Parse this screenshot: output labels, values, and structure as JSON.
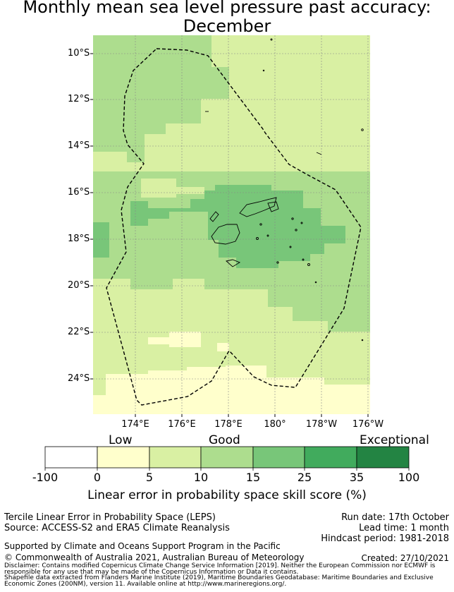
{
  "title_line1": "Monthly mean sea level pressure past accuracy:",
  "title_line2": "December",
  "map": {
    "lat_labels": [
      "10°S",
      "12°S",
      "14°S",
      "16°S",
      "18°S",
      "20°S",
      "22°S",
      "24°S"
    ],
    "lon_labels": [
      "174°E",
      "176°E",
      "178°E",
      "180°",
      "178°W",
      "176°W"
    ],
    "region": "Fiji exclusive economic zone (dashed outline)"
  },
  "colorbar": {
    "categories": [
      "Low",
      "Good",
      "Exceptional"
    ],
    "ticks": [
      "-100",
      "0",
      "5",
      "10",
      "15",
      "25",
      "35",
      "100"
    ],
    "colors": [
      "#ffffff",
      "#ffffcc",
      "#d9f0a3",
      "#addd8e",
      "#78c679",
      "#41ab5d",
      "#238443"
    ],
    "label": "Linear error in probability space skill score (%)"
  },
  "info": {
    "method": "Tercile Linear Error in Probability Space (LEPS)",
    "source": "Source: ACCESS-S2 and ERA5 Climate Reanalysis",
    "run_date": "Run date: 17th October",
    "lead_time": "Lead time: 1 month",
    "hindcast": "Hindcast period: 1981-2018",
    "supported": "Supported by Climate and Oceans Support Program in the Pacific",
    "copyright": "© Commonwealth of Australia 2021, Australian Bureau of Meteorology",
    "created": "Created: 27/10/2021",
    "disclaimer1": "Disclaimer: Contains modified Copernicus Climate Change Service Information [2019]. Neither the European Commission nor ECMWF is",
    "disclaimer2": "responsible for any use that may be made of the Copernicus Information or Data it contains.",
    "shapefile1": "Shapefile data extracted from Flanders Marine Institute (2019), Maritime Boundaries Geodatabase: Maritime Boundaries and Exclusive",
    "shapefile2": "Economic Zones (200NM), version 11. Available online at http://www.marineregions.org/."
  }
}
